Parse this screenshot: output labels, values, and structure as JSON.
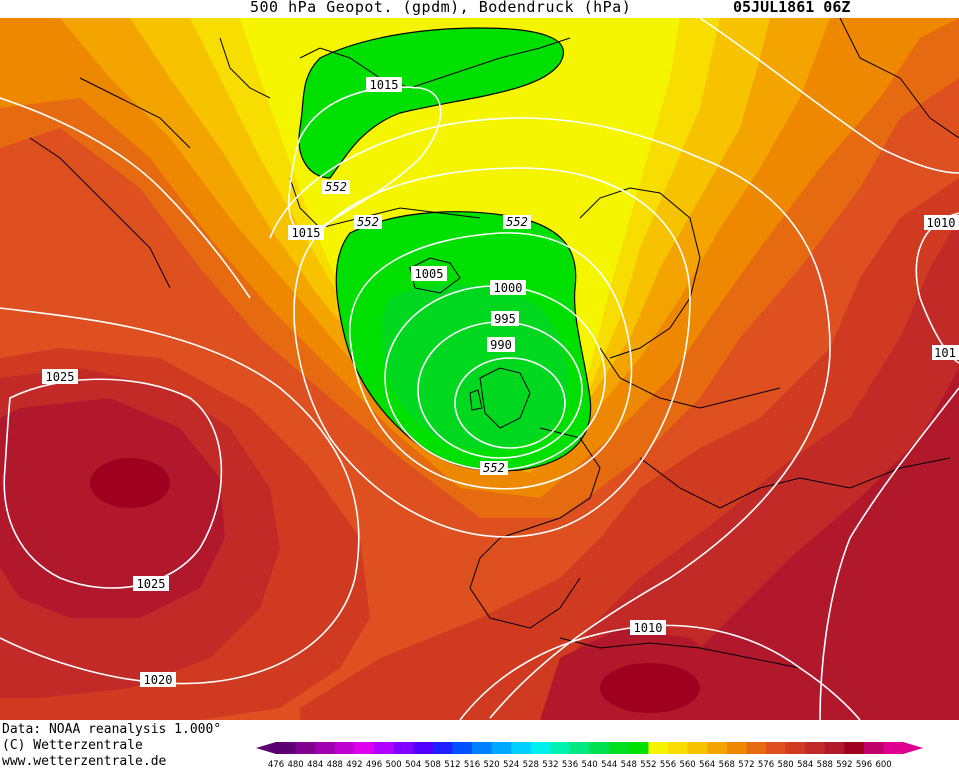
{
  "header": {
    "title": "500 hPa Geopot. (gpdm), Bodendruck (hPa)",
    "date": "05JUL1861 06Z"
  },
  "footer": {
    "line1": "Data: NOAA reanalysis 1.000°",
    "line2": "(C) Wetterzentrale",
    "line3": "www.wetterzentrale.de"
  },
  "colors": {
    "c552_556": "#f5f500",
    "c556_560": "#f8de00",
    "c560_564": "#f7c300",
    "c564_568": "#f3a400",
    "c568_572": "#ee8800",
    "c572_576": "#e66a10",
    "c576_580": "#de5020",
    "c580_584": "#cf3a20",
    "c584_588": "#c22a28",
    "c588_592": "#b2182c",
    "c592_596": "#a00020",
    "green_low": "#00e000",
    "isobar": "#ffffff"
  },
  "pressure_labels": [
    {
      "text": "1015"
    },
    {
      "text": "1015"
    },
    {
      "text": "1005"
    },
    {
      "text": "1000"
    },
    {
      "text": "995"
    },
    {
      "text": "990"
    },
    {
      "text": "1025"
    },
    {
      "text": "1025"
    },
    {
      "text": "1020"
    },
    {
      "text": "1010"
    },
    {
      "text": "1010"
    },
    {
      "text": "101"
    }
  ],
  "geopot_labels": [
    {
      "text": "552"
    },
    {
      "text": "552"
    },
    {
      "text": "552"
    },
    {
      "text": "552"
    }
  ],
  "color_scale": {
    "values": [
      "476",
      "480",
      "484",
      "488",
      "492",
      "496",
      "500",
      "504",
      "508",
      "512",
      "516",
      "520",
      "524",
      "528",
      "532",
      "536",
      "540",
      "544",
      "548",
      "552",
      "556",
      "560",
      "564",
      "568",
      "572",
      "576",
      "580",
      "584",
      "588",
      "592",
      "596",
      "600"
    ],
    "colors": [
      "#5a0070",
      "#800090",
      "#a000b0",
      "#c000d0",
      "#e000f0",
      "#b000ff",
      "#8000ff",
      "#5000ff",
      "#2020ff",
      "#0050ff",
      "#0080ff",
      "#00a8ff",
      "#00d0ff",
      "#00f0f0",
      "#00f0b0",
      "#00e880",
      "#00e050",
      "#00e020",
      "#00e000",
      "#f5f500",
      "#f8de00",
      "#f7c300",
      "#f3a400",
      "#ee8800",
      "#e66a10",
      "#de5020",
      "#cf3a20",
      "#c22a28",
      "#b2182c",
      "#a00020",
      "#c0006a",
      "#e00090"
    ]
  }
}
